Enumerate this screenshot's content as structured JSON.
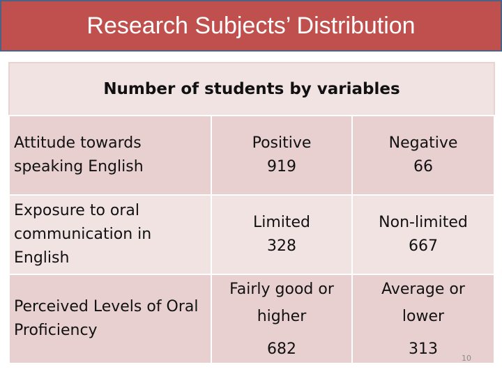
{
  "title": "Research Subjects’ Distribution",
  "table": {
    "header": "Number of students by variables",
    "rows": [
      {
        "label_lines": [
          "Attitude towards",
          "speaking English"
        ],
        "cols": [
          {
            "label_lines": [
              "Positive"
            ],
            "value": "919"
          },
          {
            "label_lines": [
              "Negative"
            ],
            "value": "66"
          }
        ]
      },
      {
        "label_lines": [
          "Exposure to oral",
          "communication in",
          "English"
        ],
        "cols": [
          {
            "label_lines": [
              "Limited"
            ],
            "value": "328"
          },
          {
            "label_lines": [
              "Non-limited"
            ],
            "value": "667"
          }
        ]
      },
      {
        "label_lines": [
          "Perceived Levels of Oral",
          "Proficiency"
        ],
        "cols": [
          {
            "label_lines": [
              "Fairly good or",
              "higher"
            ],
            "value": "682"
          },
          {
            "label_lines": [
              "Average or",
              "lower"
            ],
            "value": "313"
          }
        ]
      }
    ]
  },
  "slide_number": "10"
}
